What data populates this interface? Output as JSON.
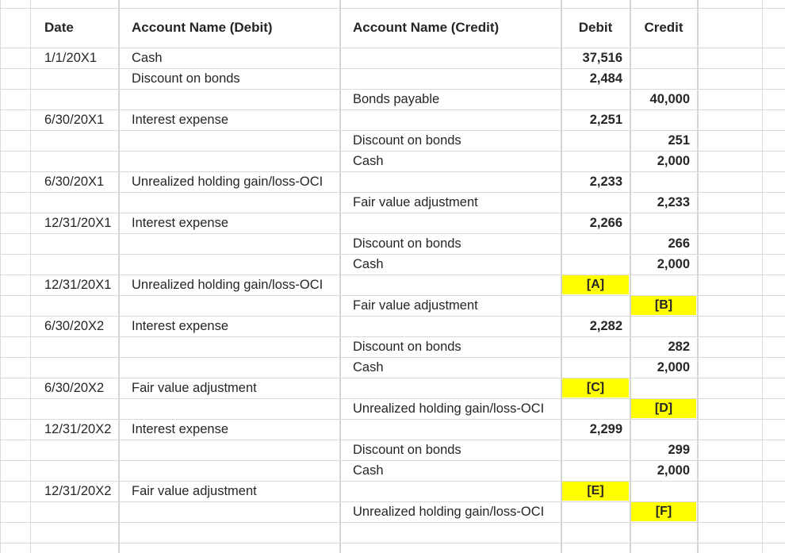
{
  "headers": {
    "date": "Date",
    "debit_account": "Account Name (Debit)",
    "credit_account": "Account Name (Credit)",
    "debit": "Debit",
    "credit": "Credit"
  },
  "rows": [
    {
      "date": "1/1/20X1",
      "debit_account": "Cash",
      "credit_account": "",
      "debit": "37,516",
      "credit": ""
    },
    {
      "date": "",
      "debit_account": "Discount on bonds",
      "credit_account": "",
      "debit": "2,484",
      "credit": ""
    },
    {
      "date": "",
      "debit_account": "",
      "credit_account": "Bonds payable",
      "debit": "",
      "credit": "40,000"
    },
    {
      "date": "6/30/20X1",
      "debit_account": "Interest expense",
      "credit_account": "",
      "debit": "2,251",
      "credit": ""
    },
    {
      "date": "",
      "debit_account": "",
      "credit_account": "Discount on bonds",
      "debit": "",
      "credit": "251"
    },
    {
      "date": "",
      "debit_account": "",
      "credit_account": "Cash",
      "debit": "",
      "credit": "2,000"
    },
    {
      "date": "6/30/20X1",
      "debit_account": "Unrealized holding gain/loss-OCI",
      "credit_account": "",
      "debit": "2,233",
      "credit": ""
    },
    {
      "date": "",
      "debit_account": "",
      "credit_account": "Fair value adjustment",
      "debit": "",
      "credit": "2,233"
    },
    {
      "date": "12/31/20X1",
      "debit_account": "Interest expense",
      "credit_account": "",
      "debit": "2,266",
      "credit": ""
    },
    {
      "date": "",
      "debit_account": "",
      "credit_account": "Discount on bonds",
      "debit": "",
      "credit": "266"
    },
    {
      "date": "",
      "debit_account": "",
      "credit_account": "Cash",
      "debit": "",
      "credit": "2,000"
    },
    {
      "date": "12/31/20X1",
      "debit_account": "Unrealized holding gain/loss-OCI",
      "credit_account": "",
      "debit": "[A]",
      "credit": "",
      "debit_highlight": true
    },
    {
      "date": "",
      "debit_account": "",
      "credit_account": "Fair value adjustment",
      "debit": "",
      "credit": "[B]",
      "credit_highlight": true
    },
    {
      "date": "6/30/20X2",
      "debit_account": "Interest expense",
      "credit_account": "",
      "debit": "2,282",
      "credit": ""
    },
    {
      "date": "",
      "debit_account": "",
      "credit_account": "Discount on bonds",
      "debit": "",
      "credit": "282"
    },
    {
      "date": "",
      "debit_account": "",
      "credit_account": "Cash",
      "debit": "",
      "credit": "2,000"
    },
    {
      "date": "6/30/20X2",
      "debit_account": "Fair value adjustment",
      "credit_account": "",
      "debit": "[C]",
      "credit": "",
      "debit_highlight": true
    },
    {
      "date": "",
      "debit_account": "",
      "credit_account": "Unrealized holding gain/loss-OCI",
      "debit": "",
      "credit": "[D]",
      "credit_highlight": true
    },
    {
      "date": "12/31/20X2",
      "debit_account": "Interest expense",
      "credit_account": "",
      "debit": "2,299",
      "credit": ""
    },
    {
      "date": "",
      "debit_account": "",
      "credit_account": "Discount on bonds",
      "debit": "",
      "credit": "299"
    },
    {
      "date": "",
      "debit_account": "",
      "credit_account": "Cash",
      "debit": "",
      "credit": "2,000"
    },
    {
      "date": "12/31/20X2",
      "debit_account": "Fair value adjustment",
      "credit_account": "",
      "debit": "[E]",
      "credit": "",
      "debit_highlight": true
    },
    {
      "date": "",
      "debit_account": "",
      "credit_account": "Unrealized holding gain/loss-OCI",
      "debit": "",
      "credit": "[F]",
      "credit_highlight": true
    }
  ],
  "colors": {
    "gridline": "#d9d9d9",
    "highlight": "#ffff00",
    "text": "#262626"
  }
}
